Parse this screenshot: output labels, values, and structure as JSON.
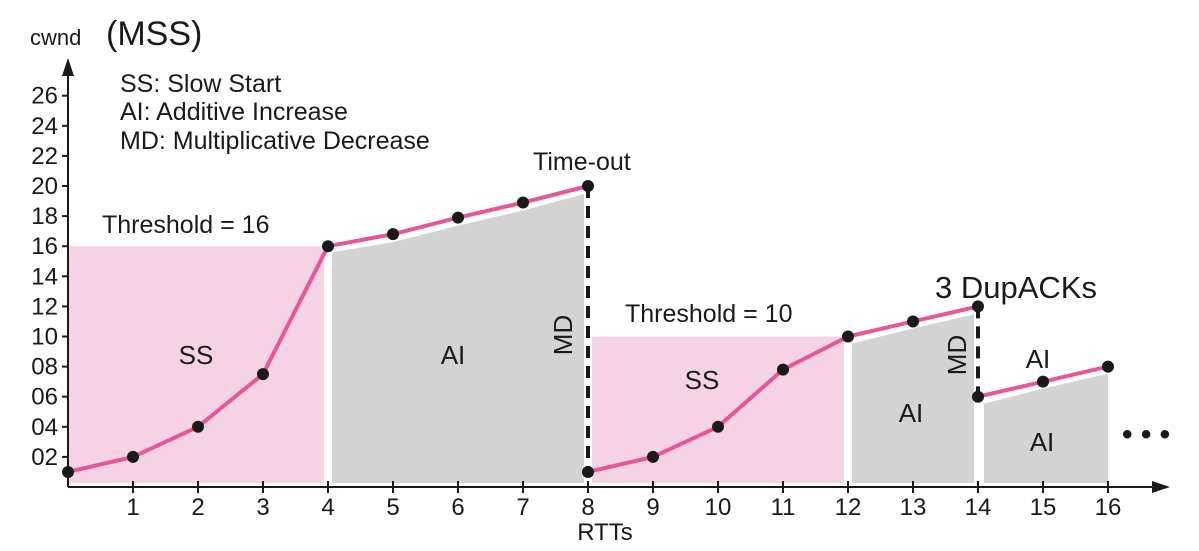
{
  "chart_data": {
    "type": "line",
    "ylabel_prefix": "cwnd",
    "ylabel_unit": "(MSS)",
    "xlabel": "RTTs",
    "x_ticks": [
      "1",
      "2",
      "3",
      "4",
      "5",
      "6",
      "7",
      "8",
      "9",
      "10",
      "11",
      "12",
      "13",
      "14",
      "15",
      "16"
    ],
    "y_ticks": [
      "02",
      "04",
      "06",
      "08",
      "10",
      "12",
      "14",
      "16",
      "18",
      "20",
      "22",
      "24",
      "26"
    ],
    "xlim": [
      0,
      16
    ],
    "ylim": [
      0,
      27
    ],
    "legend": [
      "SS: Slow Start",
      "AI: Additive Increase",
      "MD: Multiplicative Decrease"
    ],
    "series": [
      {
        "x": [
          0,
          1,
          2,
          3,
          4,
          5,
          6,
          7,
          8
        ],
        "y": [
          1,
          2,
          4,
          7.5,
          16,
          16.8,
          17.9,
          18.9,
          20
        ]
      },
      {
        "x": [
          8,
          9,
          10,
          11,
          12,
          13,
          14
        ],
        "y": [
          1,
          2,
          4,
          7.8,
          10,
          11,
          12
        ]
      },
      {
        "x": [
          14,
          15,
          16
        ],
        "y": [
          6,
          7,
          8
        ]
      }
    ],
    "regions": [
      {
        "label": "SS",
        "x": [
          0,
          4
        ],
        "type": "ss"
      },
      {
        "label": "AI",
        "x": [
          4,
          8
        ],
        "type": "ai"
      },
      {
        "label": "SS",
        "x": [
          8,
          12
        ],
        "type": "ss"
      },
      {
        "label": "AI",
        "x": [
          12,
          14
        ],
        "type": "ai"
      },
      {
        "label": "AI",
        "x": [
          14,
          16
        ],
        "type": "ai"
      },
      {
        "label": "AI",
        "x": [
          14,
          16
        ],
        "type": "ai"
      }
    ],
    "thresholds": [
      {
        "label": "Threshold = 16",
        "value": 16
      },
      {
        "label": "Threshold = 10",
        "value": 10
      }
    ],
    "drops": [
      {
        "label": "MD",
        "x": 8
      },
      {
        "label": "MD",
        "x": 14
      }
    ],
    "annotations": {
      "timeout": "Time-out",
      "dupacks": "3 DupACKs",
      "ellipsis": "• • •"
    },
    "colors": {
      "line": "#e8559a",
      "ss_fill": "#f6d3e4",
      "ai_fill": "#d3d3d3",
      "point": "#1a1a1a",
      "axis": "#1a1a1a"
    }
  }
}
